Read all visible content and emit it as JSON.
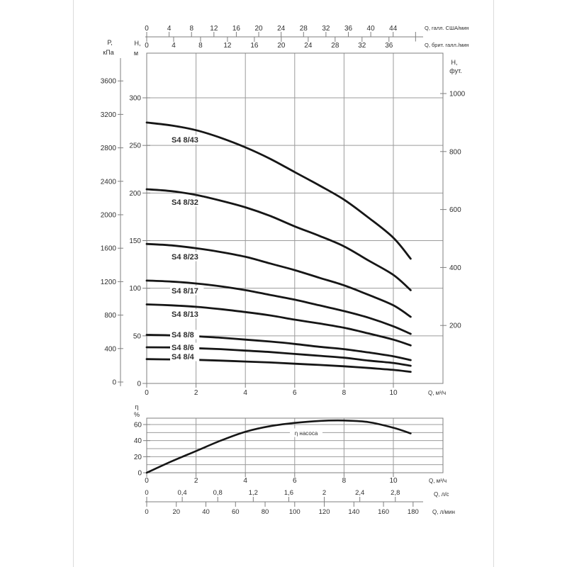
{
  "colors": {
    "background": "#ffffff",
    "page_border": "#dcdcdc",
    "grid": "#9b9b9b",
    "axis": "#7f7f7f",
    "curve": "#161616",
    "text": "#2e2e2e"
  },
  "chart_data": [
    {
      "type": "line",
      "title": "S4 8 pump head-capacity curves",
      "x": [
        0,
        1,
        2,
        3,
        4,
        5,
        6,
        7,
        8,
        9,
        10,
        10.7
      ],
      "series": [
        {
          "name": "S4 8/43",
          "values": [
            274,
            271,
            266,
            258,
            248,
            236,
            222,
            208,
            193,
            174,
            153,
            131
          ]
        },
        {
          "name": "S4 8/32",
          "values": [
            204,
            202,
            198,
            192,
            185,
            176,
            165,
            155,
            144,
            129,
            114,
            98
          ]
        },
        {
          "name": "S4 8/23",
          "values": [
            146.5,
            145,
            142,
            138,
            133,
            126,
            119,
            111,
            103,
            93,
            82,
            70
          ]
        },
        {
          "name": "S4 8/17",
          "values": [
            108,
            107,
            105,
            102,
            98,
            93,
            88,
            82,
            76,
            69,
            60,
            52
          ]
        },
        {
          "name": "S4 8/13",
          "values": [
            83,
            82,
            80.5,
            78,
            75,
            71.5,
            67,
            63,
            58.5,
            52.5,
            46,
            40
          ]
        },
        {
          "name": "S4 8/8",
          "values": [
            51,
            50.5,
            49.5,
            48,
            46,
            44,
            41.5,
            38.5,
            36,
            32.5,
            28.5,
            24.5
          ]
        },
        {
          "name": "S4 8/6",
          "values": [
            38,
            37.8,
            37,
            36,
            34.5,
            33,
            31,
            29,
            27,
            24,
            21.5,
            18.5
          ]
        },
        {
          "name": "S4 8/4",
          "values": [
            25.5,
            25.2,
            24.8,
            24,
            23,
            22,
            20.7,
            19.4,
            18,
            16.2,
            14.2,
            12.2
          ]
        }
      ],
      "axes": {
        "top_us_gpm": {
          "label": "Q, галл. США/мин",
          "ticks": [
            0,
            4,
            8,
            12,
            16,
            20,
            24,
            28,
            32,
            36,
            40,
            44
          ]
        },
        "top_imp_gpm": {
          "label": "Q, брит. галл./мин",
          "ticks": [
            0,
            4,
            8,
            12,
            16,
            20,
            24,
            28,
            32,
            36
          ]
        },
        "left_kpa": {
          "label_lines": [
            "P,",
            "кПа"
          ],
          "ticks": [
            0,
            400,
            800,
            1200,
            1600,
            2000,
            2400,
            2800,
            3200,
            3600
          ]
        },
        "left_m": {
          "label_lines": [
            "H,",
            "м"
          ],
          "ticks": [
            0,
            50,
            100,
            150,
            200,
            250,
            300
          ]
        },
        "right_ft": {
          "label_lines": [
            "H,",
            "фут."
          ],
          "ticks": [
            200,
            400,
            600,
            800,
            1000
          ]
        },
        "bottom_m3h": {
          "label": "Q, м³/ч",
          "ticks": [
            0,
            2,
            4,
            6,
            8,
            10
          ]
        }
      }
    },
    {
      "type": "line",
      "title": "Pump efficiency curve",
      "curve_label": "η насоса",
      "x": [
        0,
        1,
        2,
        3,
        4,
        5,
        6,
        7,
        8,
        9,
        10,
        10.7
      ],
      "values": [
        0,
        14,
        27,
        40,
        51,
        58,
        62,
        64.5,
        65,
        63,
        56,
        49
      ],
      "axes": {
        "left_pct": {
          "label_lines": [
            "η",
            "%"
          ],
          "ticks": [
            0,
            20,
            40,
            60
          ]
        },
        "bottom_m3h": {
          "label": "Q, м³/ч",
          "ticks": [
            0,
            2,
            4,
            6,
            8,
            10
          ]
        },
        "bottom_ls": {
          "label": "Q, л/с",
          "ticks": [
            "0",
            "0,4",
            "0,8",
            "1,2",
            "1,6",
            "2",
            "2,4",
            "2,8"
          ]
        },
        "bottom_lmin": {
          "label": "Q, л/мин",
          "ticks": [
            0,
            20,
            40,
            60,
            80,
            100,
            120,
            140,
            160,
            180
          ]
        }
      }
    }
  ]
}
